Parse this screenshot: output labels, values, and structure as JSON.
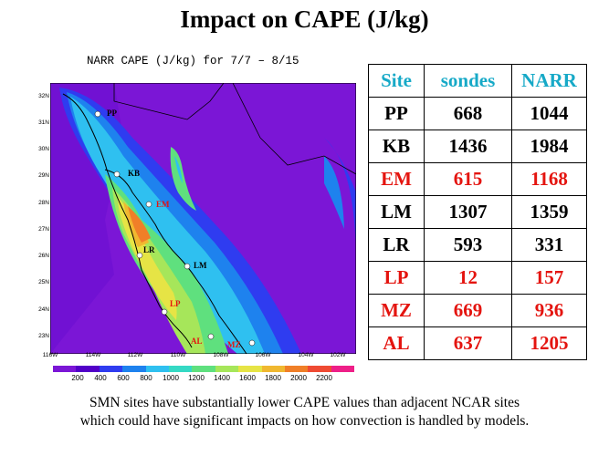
{
  "slide_title": "Impact on CAPE (J/kg)",
  "map": {
    "title": "NARR CAPE (J/kg) for 7/7 – 8/15",
    "lat_labels": [
      "32N",
      "31N",
      "30N",
      "29N",
      "28N",
      "27N",
      "26N",
      "25N",
      "24N",
      "23N"
    ],
    "lon_labels": [
      "116W",
      "114W",
      "112W",
      "110W",
      "108W",
      "106W",
      "104W",
      "102W"
    ],
    "colorbar_labels": [
      "200",
      "400",
      "600",
      "800",
      "1000",
      "1200",
      "1400",
      "1600",
      "1800",
      "2000",
      "2200"
    ],
    "colors": [
      "#7b16d6",
      "#5200c8",
      "#2f3cf0",
      "#1e82ee",
      "#2fc0f0",
      "#35d9c4",
      "#5fe07e",
      "#a6e65a",
      "#e6e445",
      "#f0b830",
      "#f07f28",
      "#ef4a33",
      "#ee1f88"
    ],
    "sites": [
      {
        "code": "PP",
        "color": "#000000"
      },
      {
        "code": "KB",
        "color": "#000000"
      },
      {
        "code": "EM",
        "color": "#e4140f"
      },
      {
        "code": "LR",
        "color": "#000000"
      },
      {
        "code": "LM",
        "color": "#000000"
      },
      {
        "code": "LP",
        "color": "#e4140f"
      },
      {
        "code": "AL",
        "color": "#e4140f"
      },
      {
        "code": "MZ",
        "color": "#e4140f"
      }
    ]
  },
  "table": {
    "headers": [
      "Site",
      "sondes",
      "NARR"
    ],
    "rows": [
      {
        "site": "PP",
        "sondes": "668",
        "narr": "1044",
        "red": false
      },
      {
        "site": "KB",
        "sondes": "1436",
        "narr": "1984",
        "red": false
      },
      {
        "site": "EM",
        "sondes": "615",
        "narr": "1168",
        "red": true
      },
      {
        "site": "LM",
        "sondes": "1307",
        "narr": "1359",
        "red": false
      },
      {
        "site": "LR",
        "sondes": "593",
        "narr": "331",
        "red": false
      },
      {
        "site": "LP",
        "sondes": "12",
        "narr": "157",
        "red": true
      },
      {
        "site": "MZ",
        "sondes": "669",
        "narr": "936",
        "red": true
      },
      {
        "site": "AL",
        "sondes": "637",
        "narr": "1205",
        "red": true
      }
    ]
  },
  "caption": {
    "line1": "SMN sites have substantially lower CAPE values than adjacent NCAR sites",
    "line2": "which could have significant impacts on how convection is handled by models."
  }
}
